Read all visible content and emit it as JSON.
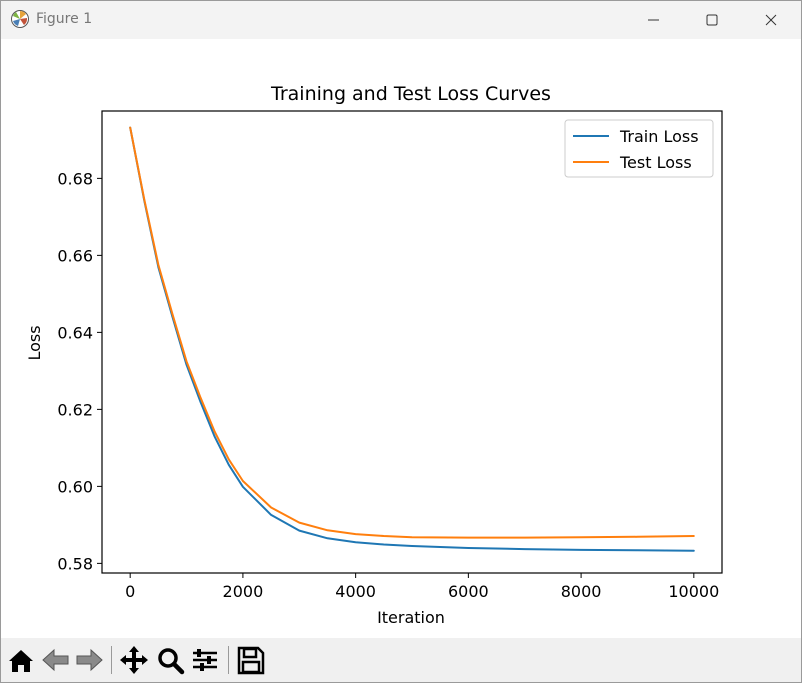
{
  "window": {
    "title": "Figure 1",
    "app_icon": "matplotlib-icon",
    "controls": [
      "minimize-icon",
      "maximize-icon",
      "close-icon"
    ]
  },
  "toolbar": {
    "buttons": [
      "home-icon",
      "back-icon",
      "forward-icon",
      "pan-icon",
      "zoom-icon",
      "configure-subplots-icon",
      "save-icon"
    ]
  },
  "chart_data": {
    "type": "line",
    "title": "Training and Test Loss Curves",
    "xlabel": "Iteration",
    "ylabel": "Loss",
    "xlim": [
      -500,
      10500
    ],
    "ylim": [
      0.5775,
      0.6975
    ],
    "xticks": [
      0,
      2000,
      4000,
      6000,
      8000,
      10000
    ],
    "xtick_labels": [
      "0",
      "2000",
      "4000",
      "6000",
      "8000",
      "10000"
    ],
    "yticks": [
      0.58,
      0.6,
      0.62,
      0.64,
      0.66,
      0.68
    ],
    "ytick_labels": [
      "0.58",
      "0.60",
      "0.62",
      "0.64",
      "0.66",
      "0.68"
    ],
    "grid": false,
    "legend_position": "top-right",
    "series": [
      {
        "name": "Train Loss",
        "color": "#1f77b4",
        "x": [
          0,
          250,
          500,
          750,
          1000,
          1250,
          1500,
          1750,
          2000,
          2500,
          3000,
          3500,
          4000,
          4500,
          5000,
          6000,
          7000,
          8000,
          9000,
          10000
        ],
        "y": [
          0.6932,
          0.6742,
          0.6569,
          0.644,
          0.6316,
          0.6219,
          0.6129,
          0.6056,
          0.5999,
          0.5926,
          0.5885,
          0.5865,
          0.5855,
          0.5849,
          0.5845,
          0.584,
          0.5837,
          0.5835,
          0.5834,
          0.5833
        ]
      },
      {
        "name": "Test Loss",
        "color": "#ff7f0e",
        "x": [
          0,
          250,
          500,
          750,
          1000,
          1250,
          1500,
          1750,
          2000,
          2500,
          3000,
          3500,
          4000,
          4500,
          5000,
          6000,
          7000,
          8000,
          9000,
          10000
        ],
        "y": [
          0.6932,
          0.6745,
          0.6575,
          0.6447,
          0.6325,
          0.623,
          0.6142,
          0.607,
          0.6014,
          0.5945,
          0.5906,
          0.5886,
          0.5876,
          0.5871,
          0.5868,
          0.5867,
          0.5867,
          0.5868,
          0.5869,
          0.5871
        ]
      }
    ]
  }
}
